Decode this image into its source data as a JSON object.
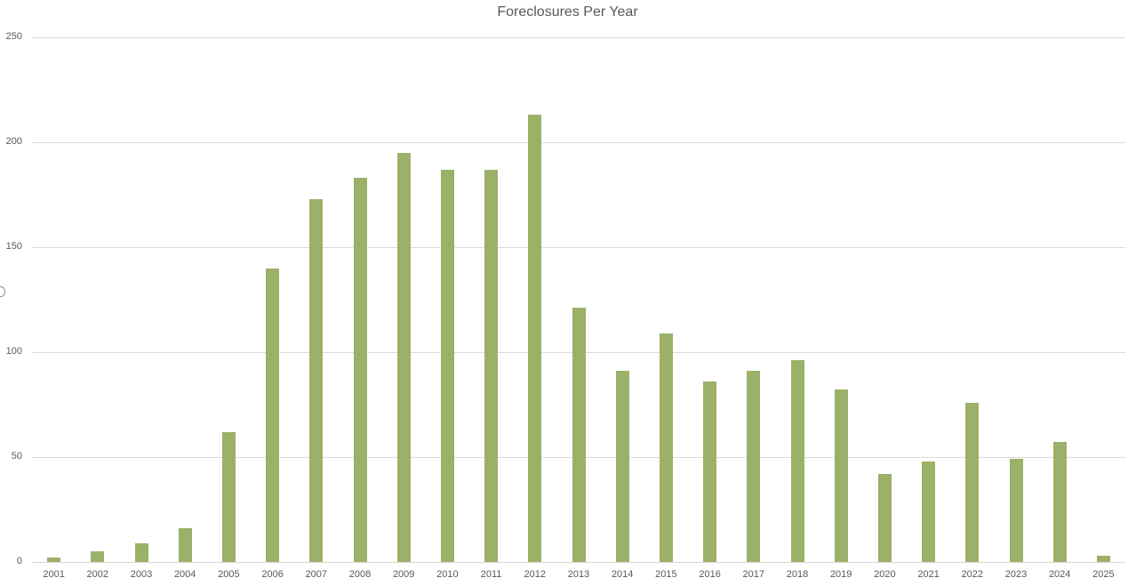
{
  "chart_data": {
    "type": "bar",
    "title": "Foreclosures Per Year",
    "xlabel": "",
    "ylabel": "",
    "ylim": [
      0,
      250
    ],
    "yticks": [
      0,
      50,
      100,
      150,
      200,
      250
    ],
    "grid": true,
    "legend": "none",
    "bar_color": "#9bb168",
    "categories": [
      "2001",
      "2002",
      "2003",
      "2004",
      "2005",
      "2006",
      "2007",
      "2008",
      "2009",
      "2010",
      "2011",
      "2012",
      "2013",
      "2014",
      "2015",
      "2016",
      "2017",
      "2018",
      "2019",
      "2020",
      "2021",
      "2022",
      "2023",
      "2024",
      "2025"
    ],
    "values": [
      2,
      5,
      9,
      16,
      62,
      140,
      173,
      183,
      195,
      187,
      187,
      213,
      121,
      91,
      109,
      86,
      91,
      96,
      82,
      42,
      48,
      76,
      49,
      57,
      3
    ]
  }
}
